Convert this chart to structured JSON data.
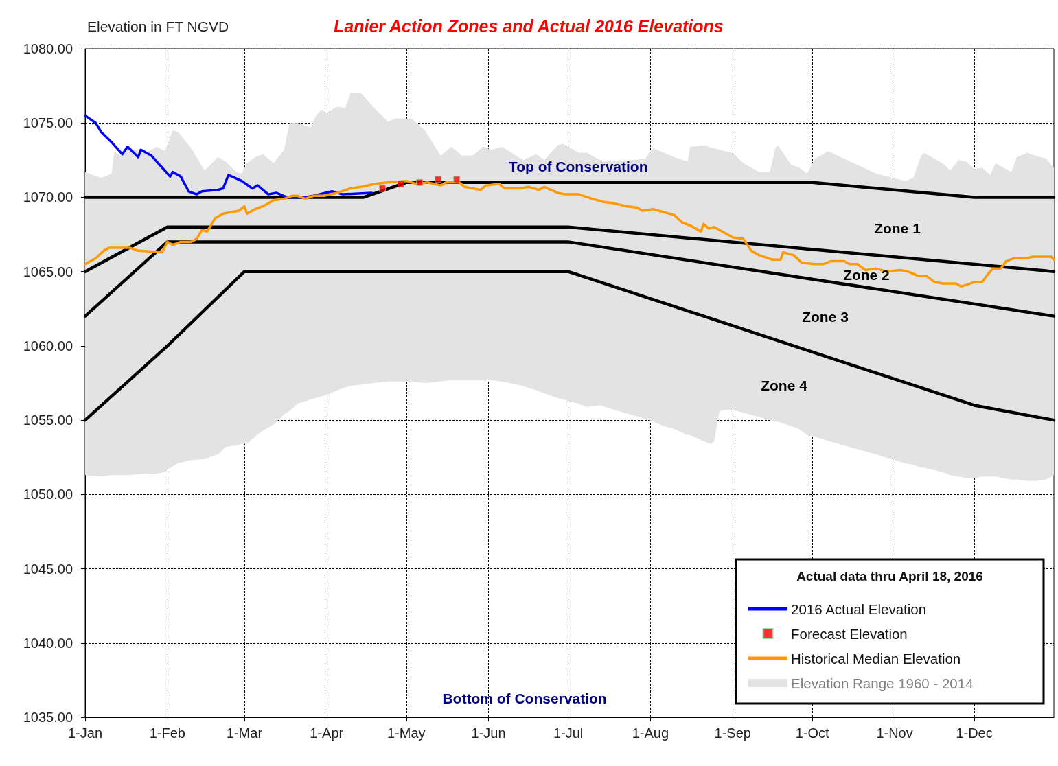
{
  "chart_data": {
    "type": "line",
    "title": "Lanier Action Zones and Actual 2016 Elevations",
    "ylabel": "Elevation in FT NGVD",
    "legend_title": "Actual data thru April 18, 2016",
    "annotations": [
      "Top of Conservation",
      "Zone 1",
      "Zone 2",
      "Zone 3",
      "Zone 4",
      "Bottom of Conservation"
    ],
    "series": [
      {
        "name": "2016 Actual Elevation",
        "color": "#0000ff",
        "x": [
          "--01-01",
          "--01-05",
          "--01-07",
          "--01-11",
          "--01-15",
          "--01-17",
          "--01-21",
          "--01-22",
          "--01-26",
          "--02-02",
          "--02-03",
          "--02-06",
          "--02-09",
          "--02-12",
          "--02-14",
          "--02-20",
          "--02-22",
          "--02-24",
          "--02-29",
          "--03-04",
          "--03-06",
          "--03-10",
          "--03-13",
          "--03-17",
          "--03-24",
          "--03-27",
          "--04-03",
          "--04-07",
          "--04-18"
        ],
        "values": [
          1075.5,
          1075.0,
          1074.4,
          1073.7,
          1072.9,
          1073.4,
          1072.7,
          1073.2,
          1072.8,
          1071.4,
          1071.7,
          1071.4,
          1070.4,
          1070.2,
          1070.4,
          1070.5,
          1070.6,
          1071.5,
          1071.1,
          1070.6,
          1070.8,
          1070.2,
          1070.3,
          1070.0,
          1070.0,
          1070.1,
          1070.4,
          1070.2,
          1070.3
        ]
      },
      {
        "name": "Forecast Elevation",
        "type": "scatter",
        "marker": "square",
        "color": "#ff0000",
        "x": [
          "--04-22",
          "--04-29",
          "--05-06",
          "--05-13",
          "--05-20"
        ],
        "values": [
          1070.6,
          1070.9,
          1071.0,
          1071.2,
          1071.2
        ]
      },
      {
        "name": "Historical Median Elevation",
        "color": "#ff9900",
        "x": [
          "--01-01",
          "--01-05",
          "--01-08",
          "--01-10",
          "--01-18",
          "--01-21",
          "--01-30",
          "--02-01",
          "--02-03",
          "--02-06",
          "--02-10",
          "--02-12",
          "--02-14",
          "--02-16",
          "--02-19",
          "--02-22",
          "--02-25",
          "--02-28",
          "--03-01",
          "--03-02",
          "--03-05",
          "--03-08",
          "--03-12",
          "--03-16",
          "--03-19",
          "--03-21",
          "--03-24",
          "--03-27",
          "--03-31",
          "--04-05",
          "--04-10",
          "--04-14",
          "--04-19",
          "--04-24",
          "--05-01",
          "--05-05",
          "--05-09",
          "--05-14",
          "--05-16",
          "--05-21",
          "--05-23",
          "--05-29",
          "--05-31",
          "--06-05",
          "--06-07",
          "--06-13",
          "--06-16",
          "--06-20",
          "--06-22",
          "--06-27",
          "--06-30",
          "--07-05",
          "--07-10",
          "--07-14",
          "--07-18",
          "--07-23",
          "--07-27",
          "--07-29",
          "--08-02",
          "--08-10",
          "--08-13",
          "--08-16",
          "--08-20",
          "--08-21",
          "--08-23",
          "--08-25",
          "--08-30",
          "--09-01",
          "--09-05",
          "--09-08",
          "--09-11",
          "--09-16",
          "--09-19",
          "--09-20",
          "--09-24",
          "--09-27",
          "--10-02",
          "--10-05",
          "--10-08",
          "--10-13",
          "--10-15",
          "--10-18",
          "--10-21",
          "--10-25",
          "--10-29",
          "--11-03",
          "--11-06",
          "--11-10",
          "--11-13",
          "--11-16",
          "--11-19",
          "--11-24",
          "--11-26",
          "--11-28",
          "--12-01",
          "--12-04",
          "--12-06",
          "--12-08",
          "--12-11",
          "--12-13",
          "--12-16",
          "--12-21",
          "--12-23",
          "--12-27",
          "--12-30",
          "--12-31"
        ],
        "values": [
          1065.5,
          1065.9,
          1066.4,
          1066.6,
          1066.6,
          1066.4,
          1066.3,
          1067.0,
          1066.8,
          1067.0,
          1067.0,
          1067.2,
          1067.8,
          1067.7,
          1068.6,
          1068.9,
          1069.0,
          1069.1,
          1069.4,
          1068.9,
          1069.2,
          1069.4,
          1069.8,
          1069.9,
          1070.1,
          1070.1,
          1069.9,
          1070.1,
          1070.1,
          1070.3,
          1070.6,
          1070.7,
          1070.9,
          1071.0,
          1071.1,
          1070.9,
          1071.0,
          1070.8,
          1071.0,
          1071.0,
          1070.7,
          1070.5,
          1070.8,
          1070.9,
          1070.6,
          1070.6,
          1070.7,
          1070.5,
          1070.7,
          1070.3,
          1070.2,
          1070.2,
          1069.9,
          1069.7,
          1069.6,
          1069.4,
          1069.3,
          1069.1,
          1069.2,
          1068.8,
          1068.3,
          1068.1,
          1067.7,
          1068.2,
          1067.9,
          1068.0,
          1067.5,
          1067.3,
          1067.2,
          1066.4,
          1066.1,
          1065.8,
          1065.8,
          1066.3,
          1066.1,
          1065.6,
          1065.5,
          1065.5,
          1065.7,
          1065.7,
          1065.5,
          1065.5,
          1065.1,
          1065.2,
          1065.0,
          1065.1,
          1065.0,
          1064.7,
          1064.7,
          1064.3,
          1064.2,
          1064.2,
          1064.0,
          1064.1,
          1064.3,
          1064.3,
          1064.8,
          1065.2,
          1065.2,
          1065.7,
          1065.9,
          1065.9,
          1066.0,
          1066.0,
          1066.0,
          1065.8
        ]
      },
      {
        "name": "Elevation Range 1960 - 2014",
        "type": "area",
        "color": "#e3e3e3",
        "x": [
          "--01-01",
          "--01-07",
          "--01-11",
          "--01-12",
          "--01-14",
          "--01-17",
          "--01-24",
          "--01-28",
          "--01-31",
          "--02-03",
          "--02-05",
          "--02-10",
          "--02-15",
          "--02-20",
          "--02-23",
          "--02-27",
          "--02-29",
          "--03-02",
          "--03-05",
          "--03-08",
          "--03-12",
          "--03-16",
          "--03-18",
          "--03-21",
          "--03-26",
          "--03-28",
          "--03-30",
          "--04-01",
          "--04-05",
          "--04-08",
          "--04-10",
          "--04-14",
          "--04-19",
          "--04-24",
          "--04-27",
          "--05-03",
          "--05-08",
          "--05-14",
          "--05-18",
          "--05-22",
          "--05-26",
          "--05-30",
          "--06-02",
          "--06-06",
          "--06-14",
          "--06-19",
          "--06-22",
          "--06-27",
          "--06-29",
          "--07-05",
          "--07-08",
          "--07-13",
          "--07-20",
          "--07-30",
          "--08-02",
          "--08-06",
          "--08-10",
          "--08-15",
          "--08-16",
          "--08-22",
          "--08-24",
          "--08-25",
          "--08-27",
          "--08-29",
          "--09-01",
          "--09-05",
          "--09-11",
          "--09-15",
          "--09-17",
          "--09-18",
          "--09-23",
          "--09-26",
          "--09-29",
          "--10-02",
          "--10-07",
          "--10-13",
          "--10-19",
          "--10-25",
          "--11-05",
          "--11-08",
          "--11-11",
          "--11-12",
          "--11-19",
          "--11-22",
          "--11-25",
          "--11-28",
          "--12-01",
          "--12-04",
          "--12-07",
          "--12-09",
          "--12-15",
          "--12-17",
          "--12-21",
          "--12-24",
          "--12-28",
          "--12-31"
        ],
        "values": [
          null,
          null,
          null,
          null,
          null,
          null,
          null,
          null,
          null,
          null,
          null,
          null,
          null,
          null,
          null,
          null,
          null,
          null,
          null,
          null,
          null,
          null,
          null,
          null,
          null,
          null,
          null,
          null,
          null,
          null,
          null,
          null,
          null,
          null,
          null,
          null,
          null,
          null,
          null,
          null,
          null,
          null,
          null,
          null,
          null,
          null,
          null,
          null,
          null,
          null,
          null,
          null,
          null,
          null,
          null,
          null,
          null,
          null,
          null,
          null,
          null,
          null,
          null,
          null,
          null,
          null,
          null,
          null,
          null,
          null,
          null,
          null,
          null,
          null,
          null,
          null,
          null,
          null,
          null,
          null,
          null,
          null,
          null,
          null,
          null,
          null,
          null,
          null,
          null,
          null,
          null,
          null,
          null,
          null,
          null,
          null
        ],
        "upper": [
          1071.7,
          1071.3,
          1071.6,
          1073.1,
          1072.8,
          1073.3,
          1073.0,
          1073.4,
          1073.1,
          1074.5,
          1074.4,
          1073.3,
          1071.8,
          1072.7,
          1072.4,
          1071.7,
          1071.6,
          1072.3,
          1072.7,
          1072.9,
          1072.3,
          1073.2,
          1075.0,
          1075.0,
          1074.7,
          1075.5,
          1075.9,
          1075.7,
          1076.1,
          1076.0,
          1077.0,
          1077.0,
          1076.0,
          1075.1,
          1075.3,
          1075.3,
          1074.5,
          1072.8,
          1073.4,
          1072.8,
          1072.8,
          1073.4,
          1073.2,
          1073.4,
          1072.5,
          1072.9,
          1072.5,
          1073.5,
          1073.6,
          1073.0,
          1073.0,
          1072.5,
          1072.4,
          1072.6,
          1073.3,
          1073.0,
          1072.7,
          1072.4,
          1073.4,
          1073.5,
          1073.3,
          1073.3,
          1073.2,
          1073.1,
          1073.0,
          1072.3,
          1071.7,
          1071.7,
          1073.3,
          1073.5,
          1072.2,
          1072.0,
          1071.6,
          1072.6,
          1073.1,
          1072.6,
          1072.1,
          1071.6,
          1071.1,
          1071.3,
          1072.8,
          1073.0,
          1072.3,
          1071.8,
          1072.5,
          1072.4,
          1071.9,
          1072.0,
          1071.5,
          1072.3,
          1071.7,
          1072.7,
          1073.0,
          1072.8,
          1072.6,
          1072.0
        ],
        "lower": [
          1051.3,
          1051.2,
          1051.3,
          1051.3,
          1051.3,
          1051.3,
          1051.4,
          1051.4,
          1051.5,
          1051.9,
          1052.1,
          1052.3,
          1052.4,
          1052.7,
          1053.2,
          1053.3,
          1053.4,
          1053.4,
          1053.9,
          1054.3,
          1054.7,
          1055.4,
          1055.6,
          1056.1,
          1056.4,
          1056.5,
          1056.6,
          1056.7,
          1057.0,
          1057.2,
          1057.3,
          1057.4,
          1057.5,
          1057.6,
          1057.6,
          1057.6,
          1057.5,
          1057.6,
          1057.7,
          1057.7,
          1057.7,
          1057.7,
          1057.7,
          1057.6,
          1057.3,
          1057.0,
          1056.8,
          1056.5,
          1056.4,
          1056.1,
          1055.9,
          1056.0,
          1055.6,
          1055.1,
          1054.9,
          1054.6,
          1054.4,
          1054.0,
          1054.0,
          1053.5,
          1053.4,
          1053.6,
          1055.6,
          1055.7,
          1055.7,
          1055.5,
          1055.2,
          1055.0,
          1054.9,
          1054.9,
          1054.6,
          1054.4,
          1054.0,
          1053.9,
          1053.6,
          1053.3,
          1053.0,
          1052.7,
          1052.1,
          1052.0,
          1051.8,
          1051.8,
          1051.5,
          1051.3,
          1051.2,
          1051.1,
          1051.1,
          1051.2,
          1051.2,
          1051.2,
          1051.0,
          1051.0,
          1050.9,
          1050.9,
          1051.0,
          1051.3
        ]
      },
      {
        "color": "#000000",
        "x": [
          "--01-01",
          "--04-15",
          "--05-01",
          "--10-01",
          "--12-01",
          "--12-31"
        ],
        "values": [
          1070,
          1070,
          1071,
          1071,
          1070,
          1070
        ]
      },
      {
        "color": "#000000",
        "x": [
          "--01-01",
          "--02-01",
          "--07-01",
          "--12-31"
        ],
        "values": [
          1065,
          1068,
          1068,
          1065
        ]
      },
      {
        "color": "#000000",
        "x": [
          "--01-01",
          "--02-01",
          "--07-01",
          "--12-31"
        ],
        "values": [
          1062,
          1067,
          1067,
          1062
        ]
      },
      {
        "color": "#000000",
        "x": [
          "--01-01",
          "--02-01",
          "--03-01",
          "--07-01",
          "--12-01",
          "--12-31"
        ],
        "values": [
          1055,
          1060,
          1065,
          1065,
          1056,
          1055
        ]
      }
    ],
    "xlim": [
      "--01-01",
      "--12-31"
    ],
    "xticks": [
      {
        "value": "--01-01",
        "label": "1-Jan"
      },
      {
        "value": "--02-01",
        "label": "1-Feb"
      },
      {
        "value": "--03-01",
        "label": "1-Mar"
      },
      {
        "value": "--04-01",
        "label": "1-Apr"
      },
      {
        "value": "--05-01",
        "label": "1-May"
      },
      {
        "value": "--06-01",
        "label": "1-Jun"
      },
      {
        "value": "--07-01",
        "label": "1-Jul"
      },
      {
        "value": "--08-01",
        "label": "1-Aug"
      },
      {
        "value": "--09-01",
        "label": "1-Sep"
      },
      {
        "value": "--10-01",
        "label": "1-Oct"
      },
      {
        "value": "--11-01",
        "label": "1-Nov"
      },
      {
        "value": "--12-01",
        "label": "1-Dec"
      }
    ],
    "ylim": [
      1035,
      1080
    ],
    "yticks": [
      {
        "value": 1035,
        "label": "1035.00"
      },
      {
        "value": 1040,
        "label": "1040.00"
      },
      {
        "value": 1045,
        "label": "1045.00"
      },
      {
        "value": 1050,
        "label": "1050.00"
      },
      {
        "value": 1055,
        "label": "1055.00"
      },
      {
        "value": 1060,
        "label": "1060.00"
      },
      {
        "value": 1065,
        "label": "1065.00"
      },
      {
        "value": 1070,
        "label": "1070.00"
      },
      {
        "value": 1075,
        "label": "1075.00"
      },
      {
        "value": 1080,
        "label": "1080.00"
      }
    ],
    "grid": true,
    "legend": "bottom right",
    "marker": "none"
  }
}
